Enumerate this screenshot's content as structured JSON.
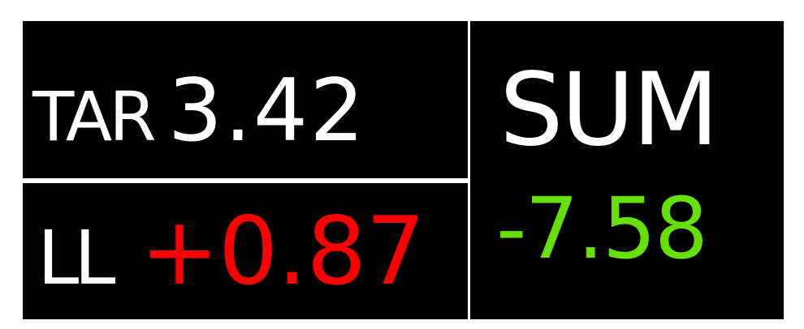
{
  "tar": {
    "label": "TAR",
    "value": "3.42"
  },
  "ll": {
    "label": "LL",
    "value": "+0.87",
    "value_color": "#ff0000"
  },
  "sum": {
    "label": "SUM",
    "value": "-7.58",
    "value_color": "#66e000"
  },
  "colors": {
    "panel_bg": "#000000",
    "label_text": "#ffffff",
    "page_bg": "#ffffff"
  }
}
